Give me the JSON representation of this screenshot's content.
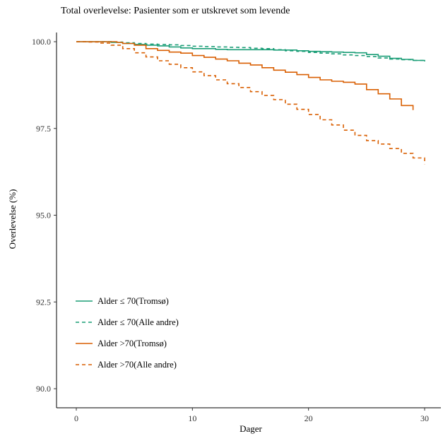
{
  "chart_data": {
    "type": "line",
    "title": "Total overlevelse: Pasienter som er utskrevet som levende",
    "xlabel": "Dager",
    "ylabel": "Overlevelse (%)",
    "xlim": [
      0,
      30
    ],
    "ylim": [
      90,
      100
    ],
    "x_ticks": [
      0,
      10,
      20,
      30
    ],
    "x_tick_labels": [
      "0",
      "10",
      "20",
      "30"
    ],
    "y_ticks": [
      90,
      92.5,
      95,
      97.5,
      100
    ],
    "y_tick_labels": [
      "90.0",
      "92.5",
      "95.0",
      "97.5",
      "100.0"
    ],
    "grid": false,
    "legend_position": "bottom-left",
    "series": [
      {
        "name": "Alder ≤ 70(Tromsø)",
        "color": "#1b9e77",
        "dash": "solid",
        "x": [
          0,
          2.5,
          3,
          4,
          5,
          6,
          7,
          8,
          9,
          10,
          11,
          12,
          13,
          14,
          15,
          16,
          17,
          18,
          19,
          20,
          21,
          22,
          23,
          24,
          25,
          26,
          27,
          28,
          29,
          30
        ],
        "y": [
          100,
          100,
          99.98,
          99.95,
          99.92,
          99.9,
          99.88,
          99.85,
          99.82,
          99.8,
          99.8,
          99.78,
          99.77,
          99.77,
          99.77,
          99.77,
          99.76,
          99.76,
          99.74,
          99.72,
          99.71,
          99.7,
          99.69,
          99.68,
          99.63,
          99.58,
          99.52,
          99.49,
          99.46,
          99.43
        ]
      },
      {
        "name": "Alder ≤ 70(Alle andre)",
        "color": "#1b9e77",
        "dash": "dashed",
        "x": [
          0,
          3,
          4,
          5,
          6,
          7,
          8,
          9,
          10,
          11,
          12,
          13,
          14,
          15,
          16,
          17,
          18,
          19,
          20,
          21,
          22,
          23,
          24,
          25,
          26,
          27,
          28,
          29,
          30
        ],
        "y": [
          100,
          99.99,
          99.97,
          99.95,
          99.93,
          99.92,
          99.91,
          99.89,
          99.87,
          99.86,
          99.85,
          99.84,
          99.83,
          99.81,
          99.8,
          99.77,
          99.74,
          99.72,
          99.69,
          99.67,
          99.65,
          99.62,
          99.6,
          99.57,
          99.53,
          99.5,
          99.48,
          99.46,
          99.43
        ]
      },
      {
        "name": "Alder >70(Tromsø)",
        "color": "#d95f02",
        "dash": "solid",
        "x": [
          0,
          3,
          3.5,
          4,
          5,
          6,
          7,
          8,
          9,
          10,
          11,
          12,
          13,
          14,
          15,
          16,
          17,
          18,
          19,
          20,
          21,
          22,
          23,
          24,
          25,
          26,
          27,
          28,
          29
        ],
        "y": [
          100,
          100,
          99.98,
          99.95,
          99.9,
          99.8,
          99.75,
          99.7,
          99.67,
          99.6,
          99.55,
          99.5,
          99.45,
          99.38,
          99.33,
          99.25,
          99.18,
          99.12,
          99.05,
          98.97,
          98.9,
          98.86,
          98.83,
          98.78,
          98.62,
          98.5,
          98.35,
          98.16,
          98.03
        ]
      },
      {
        "name": "Alder >70(Alle andre)",
        "color": "#d95f02",
        "dash": "dashed",
        "x": [
          0,
          1,
          2,
          3,
          4,
          5,
          6,
          7,
          8,
          9,
          10,
          11,
          12,
          13,
          14,
          15,
          16,
          17,
          18,
          19,
          20,
          21,
          22,
          23,
          24,
          25,
          26,
          27,
          28,
          29,
          30
        ],
        "y": [
          100,
          99.99,
          99.96,
          99.9,
          99.8,
          99.68,
          99.56,
          99.45,
          99.35,
          99.25,
          99.13,
          99.02,
          98.9,
          98.79,
          98.68,
          98.56,
          98.45,
          98.33,
          98.2,
          98.05,
          97.9,
          97.75,
          97.6,
          97.45,
          97.3,
          97.15,
          97.05,
          96.92,
          96.78,
          96.65,
          96.47
        ]
      }
    ]
  }
}
